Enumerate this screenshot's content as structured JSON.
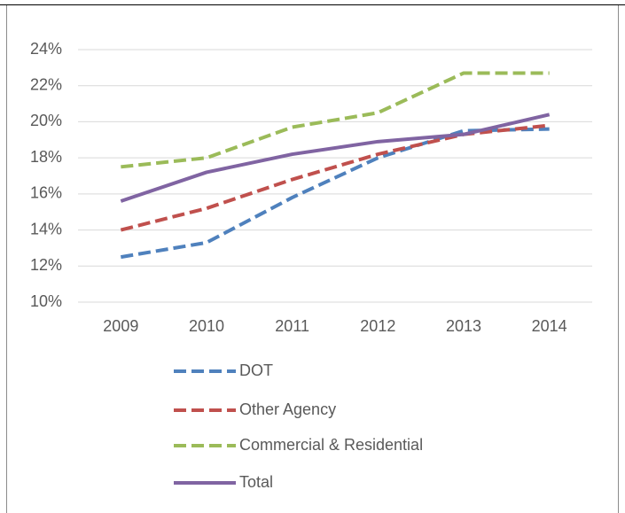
{
  "chart_data": {
    "type": "line",
    "categories": [
      "2009",
      "2010",
      "2011",
      "2012",
      "2013",
      "2014"
    ],
    "series": [
      {
        "name": "DOT",
        "color": "#4f81bd",
        "dashed": true,
        "values": [
          12.5,
          13.3,
          15.8,
          18.0,
          19.5,
          19.6
        ]
      },
      {
        "name": "Other Agency",
        "color": "#c0504d",
        "dashed": true,
        "values": [
          14.0,
          15.2,
          16.8,
          18.2,
          19.3,
          19.8
        ]
      },
      {
        "name": "Commercial & Residential",
        "color": "#9bbb59",
        "dashed": true,
        "values": [
          17.5,
          18.0,
          19.7,
          20.5,
          22.7,
          22.7
        ]
      },
      {
        "name": "Total",
        "color": "#8064a2",
        "dashed": false,
        "values": [
          15.6,
          17.2,
          18.2,
          18.9,
          19.3,
          20.4
        ]
      }
    ],
    "ylim": [
      10,
      24
    ],
    "yticks": [
      {
        "value": 10,
        "label": "10%"
      },
      {
        "value": 12,
        "label": "12%"
      },
      {
        "value": 14,
        "label": "14%"
      },
      {
        "value": 16,
        "label": "16%"
      },
      {
        "value": 18,
        "label": "18%"
      },
      {
        "value": 20,
        "label": "20%"
      },
      {
        "value": 22,
        "label": "22%"
      },
      {
        "value": 24,
        "label": "24%"
      }
    ],
    "grid": true,
    "legend": "bottom"
  }
}
